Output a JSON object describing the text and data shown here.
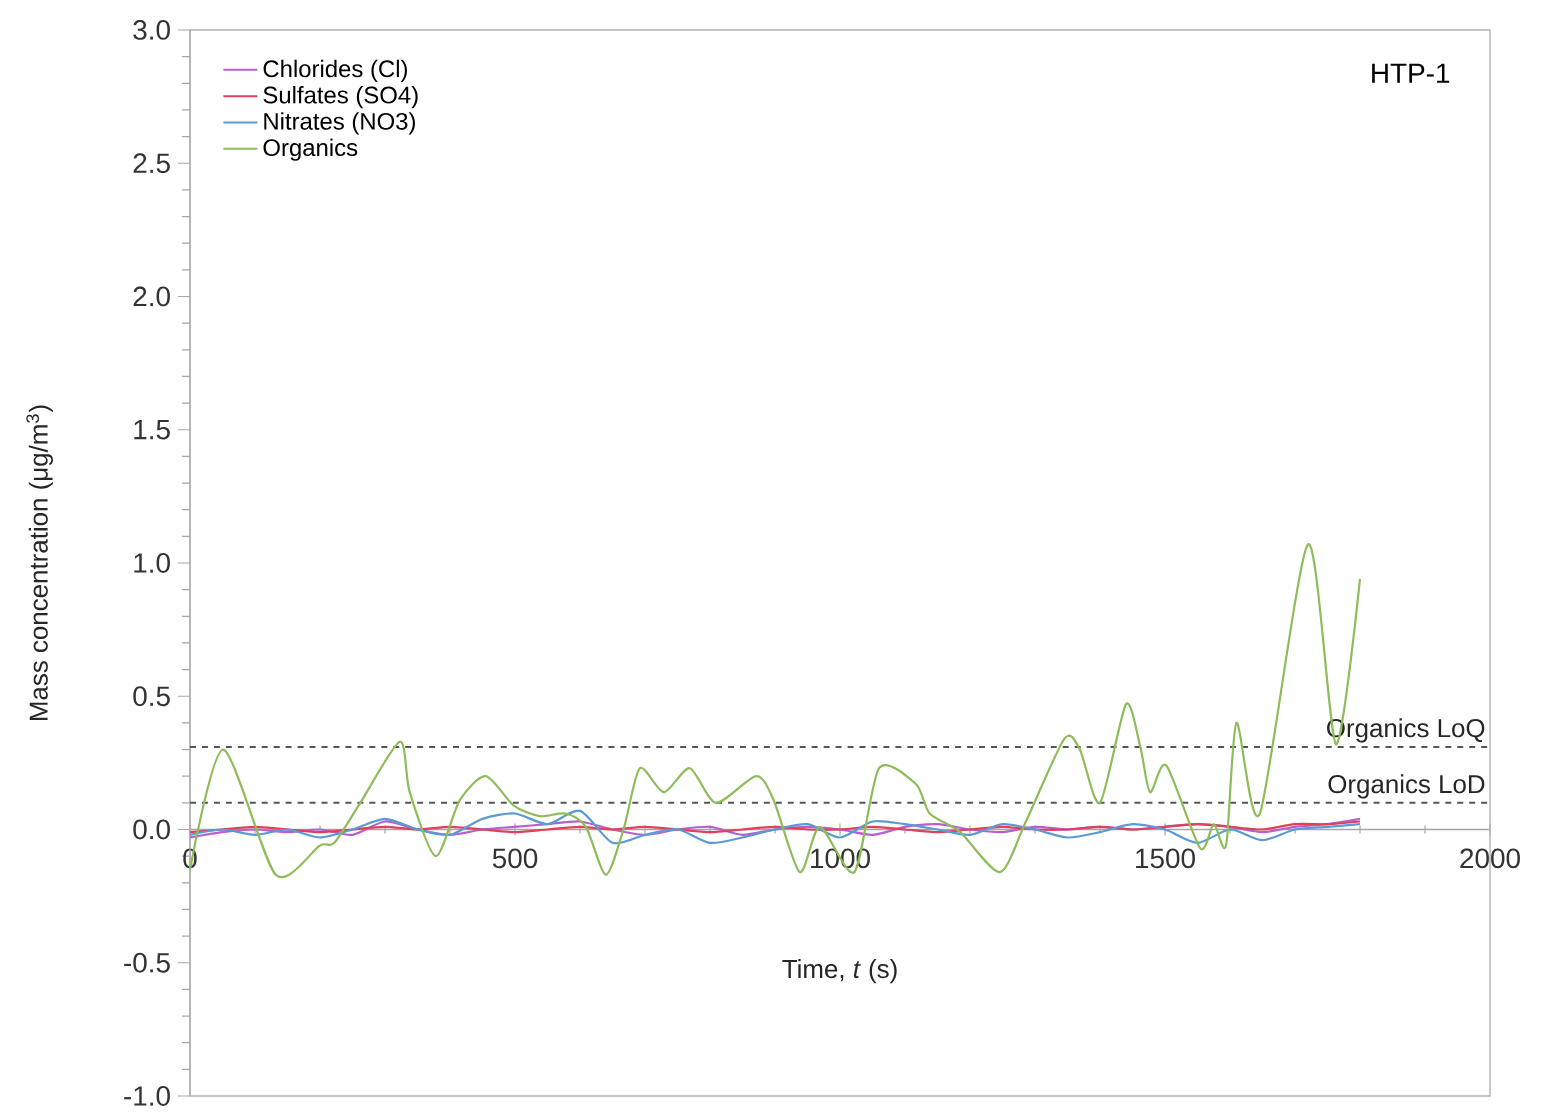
{
  "chart_data": {
    "type": "line",
    "annotations": [
      "HTP-1"
    ],
    "xlabel": "Time, *t* (s)",
    "ylabel": "Mass concentration (μg/m$^{3}$)",
    "x": [
      0,
      50,
      100,
      150,
      200,
      250,
      300,
      350,
      400,
      450,
      500,
      550,
      600,
      650,
      700,
      750,
      800,
      850,
      900,
      950,
      1000,
      1050,
      1100,
      1150,
      1200,
      1250,
      1300,
      1350,
      1400,
      1450,
      1500,
      1550,
      1600,
      1650,
      1700,
      1750,
      1800
    ],
    "series": [
      {
        "name": "Chlorides (Cl)",
        "color": "#b660cd",
        "values": [
          -0.03,
          -0.01,
          0.0,
          -0.01,
          0.0,
          -0.02,
          0.03,
          0.0,
          -0.02,
          0.0,
          0.01,
          0.02,
          0.03,
          0.0,
          -0.02,
          0.0,
          0.01,
          -0.02,
          0.0,
          0.01,
          0.0,
          -0.02,
          0.01,
          0.02,
          0.0,
          -0.01,
          0.01,
          0.0,
          0.01,
          0.0,
          0.01,
          0.02,
          0.01,
          -0.01,
          0.01,
          0.02,
          0.04
        ]
      },
      {
        "name": "Sulfates (SO4)",
        "color": "#e0405a",
        "values": [
          -0.01,
          0.0,
          0.01,
          0.0,
          -0.01,
          0.0,
          0.01,
          0.0,
          0.01,
          0.0,
          -0.01,
          0.0,
          0.01,
          0.0,
          0.01,
          0.0,
          -0.01,
          0.0,
          0.01,
          0.0,
          0.0,
          0.01,
          0.0,
          -0.01,
          0.0,
          0.01,
          0.0,
          0.0,
          0.01,
          0.0,
          0.01,
          0.02,
          0.01,
          0.0,
          0.02,
          0.02,
          0.03
        ]
      },
      {
        "name": "Nitrates (NO3)",
        "color": "#5b9bd5",
        "values": [
          -0.02,
          0.0,
          -0.02,
          0.0,
          -0.03,
          0.0,
          0.04,
          0.0,
          -0.02,
          0.04,
          0.06,
          0.02,
          0.07,
          -0.05,
          -0.02,
          0.0,
          -0.05,
          -0.03,
          0.0,
          0.02,
          -0.03,
          0.03,
          0.02,
          0.0,
          -0.02,
          0.02,
          0.0,
          -0.03,
          -0.01,
          0.02,
          0.0,
          -0.05,
          0.0,
          -0.04,
          0.0,
          0.01,
          0.02
        ]
      },
      {
        "name": "Organics",
        "color": "#8fbc5a",
        "x": [
          0,
          51,
          132,
          200,
          222,
          262,
          323,
          338,
          378,
          415,
          455,
          498,
          538,
          578,
          609,
          640,
          668,
          692,
          729,
          769,
          809,
          871,
          898,
          938,
          969,
          1022,
          1060,
          1117,
          1138,
          1185,
          1246,
          1286,
          1345,
          1369,
          1400,
          1440,
          1462,
          1477,
          1502,
          1554,
          1575,
          1594,
          1610,
          1646,
          1720,
          1763,
          1800
        ],
        "values": [
          -0.15,
          0.3,
          -0.17,
          -0.06,
          -0.05,
          0.1,
          0.33,
          0.14,
          -0.1,
          0.11,
          0.2,
          0.09,
          0.05,
          0.06,
          0.01,
          -0.17,
          0.01,
          0.23,
          0.14,
          0.23,
          0.1,
          0.2,
          0.11,
          -0.16,
          0.01,
          -0.16,
          0.23,
          0.17,
          0.06,
          -0.01,
          -0.16,
          0.03,
          0.34,
          0.3,
          0.1,
          0.47,
          0.31,
          0.14,
          0.24,
          -0.07,
          0.02,
          -0.06,
          0.4,
          0.06,
          1.07,
          0.32,
          0.94
        ]
      }
    ],
    "ref_lines": [
      {
        "axis": "y",
        "value": 0.31,
        "label": "Organics LoQ",
        "color": "#555555",
        "line_style": "dashed"
      },
      {
        "axis": "y",
        "value": 0.1,
        "label": "Organics LoD",
        "color": "#555555",
        "line_style": "dashed"
      }
    ],
    "xlim": [
      0,
      2000
    ],
    "xticks": [
      0,
      500,
      1000,
      1500,
      2000
    ],
    "ylim": [
      -1,
      3
    ],
    "yticks": [
      {
        "value": -1,
        "label": "-1.0"
      },
      {
        "value": -0.5,
        "label": "-0.5"
      },
      {
        "value": 0,
        "label": "0.0"
      },
      {
        "value": 0.5,
        "label": "0.5"
      },
      {
        "value": 1,
        "label": "1.0"
      },
      {
        "value": 1.5,
        "label": "1.5"
      },
      {
        "value": 2,
        "label": "2.0"
      },
      {
        "value": 2.5,
        "label": "2.5"
      },
      {
        "value": 3,
        "label": "3.0"
      }
    ],
    "grid": false,
    "legend": "top left",
    "marker": "none",
    "line_style": "solid"
  }
}
